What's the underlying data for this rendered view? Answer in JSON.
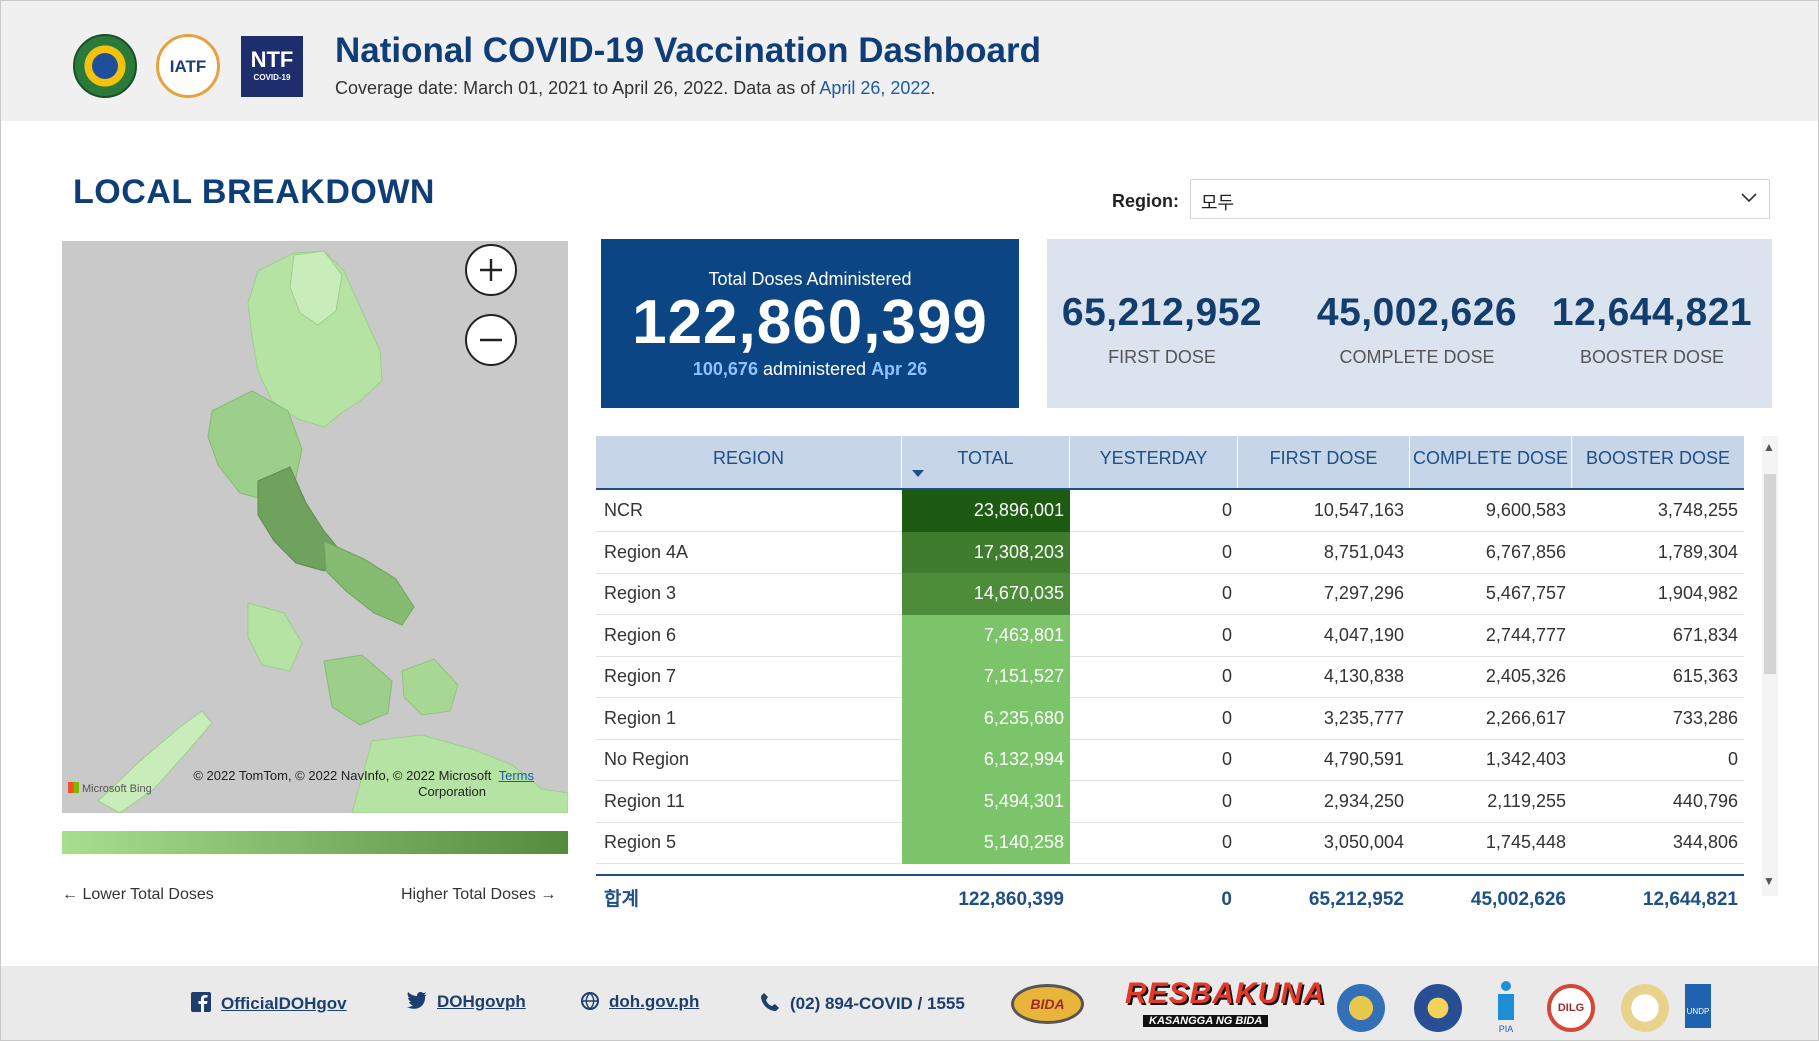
{
  "header": {
    "title": "National COVID-19 Vaccination Dashboard",
    "subtitle_prefix": "Coverage date: March 01, 2021 to April 26, 2022. Data as of ",
    "subtitle_date": "April 26, 2022",
    "subtitle_suffix": ".",
    "logos": {
      "iatf": "IATF",
      "ntf": "NTF",
      "ntf_sub": "COVID-19"
    }
  },
  "section": {
    "title": "LOCAL BREAKDOWN"
  },
  "region_filter": {
    "label": "Region:",
    "value": "모두"
  },
  "map": {
    "credit": "© 2022 TomTom, © 2022 NavInfo, © 2022 Microsoft",
    "terms": "Terms",
    "credit_line2": "Corporation",
    "bing": "Microsoft Bing",
    "legend_low": "← Lower Total Doses",
    "legend_high": "Higher Total Doses →"
  },
  "total_card": {
    "label": "Total Doses Administered",
    "value": "122,860,399",
    "daily_value": "100,676",
    "daily_text": "administered",
    "daily_date": "Apr 26"
  },
  "dose_cards": [
    {
      "value": "65,212,952",
      "label": "FIRST DOSE"
    },
    {
      "value": "45,002,626",
      "label": "COMPLETE DOSE"
    },
    {
      "value": "12,644,821",
      "label": "BOOSTER DOSE"
    }
  ],
  "table": {
    "columns": [
      "REGION",
      "TOTAL",
      "YESTERDAY",
      "FIRST DOSE",
      "COMPLETE DOSE",
      "BOOSTER DOSE"
    ],
    "rows": [
      {
        "region": "NCR",
        "total": "23,896,001",
        "yesterday": "0",
        "first": "10,547,163",
        "complete": "9,600,583",
        "booster": "3,748,255"
      },
      {
        "region": "Region 4A",
        "total": "17,308,203",
        "yesterday": "0",
        "first": "8,751,043",
        "complete": "6,767,856",
        "booster": "1,789,304"
      },
      {
        "region": "Region 3",
        "total": "14,670,035",
        "yesterday": "0",
        "first": "7,297,296",
        "complete": "5,467,757",
        "booster": "1,904,982"
      },
      {
        "region": "Region 6",
        "total": "7,463,801",
        "yesterday": "0",
        "first": "4,047,190",
        "complete": "2,744,777",
        "booster": "671,834"
      },
      {
        "region": "Region 7",
        "total": "7,151,527",
        "yesterday": "0",
        "first": "4,130,838",
        "complete": "2,405,326",
        "booster": "615,363"
      },
      {
        "region": "Region 1",
        "total": "6,235,680",
        "yesterday": "0",
        "first": "3,235,777",
        "complete": "2,266,617",
        "booster": "733,286"
      },
      {
        "region": "No Region",
        "total": "6,132,994",
        "yesterday": "0",
        "first": "4,790,591",
        "complete": "1,342,403",
        "booster": "0"
      },
      {
        "region": "Region 11",
        "total": "5,494,301",
        "yesterday": "0",
        "first": "2,934,250",
        "complete": "2,119,255",
        "booster": "440,796"
      },
      {
        "region": "Region 5",
        "total": "5,140,258",
        "yesterday": "0",
        "first": "3,050,004",
        "complete": "1,745,448",
        "booster": "344,806"
      }
    ],
    "footer": {
      "label": "합계",
      "total": "122,860,399",
      "yesterday": "0",
      "first": "65,212,952",
      "complete": "45,002,626",
      "booster": "12,644,821"
    },
    "heat_colors": [
      "#1d5a12",
      "#3f7c2e",
      "#4d8d3a",
      "#7cc46a"
    ]
  },
  "footer": {
    "facebook": "OfficialDOHgov",
    "twitter": "DOHgovph",
    "website": "doh.gov.ph",
    "phone": "(02) 894-COVID / 1555",
    "bida": "BIDA",
    "resbakuna": "RESBAKUNA",
    "resbakuna_sub": "KASANGGA NG BIDA",
    "dilg": "DILG",
    "pia": "PIA",
    "undp": "UNDP"
  },
  "colors": {
    "brand": "#0e3d78",
    "card": "#0c4584",
    "accent": "#1e5aa8"
  }
}
